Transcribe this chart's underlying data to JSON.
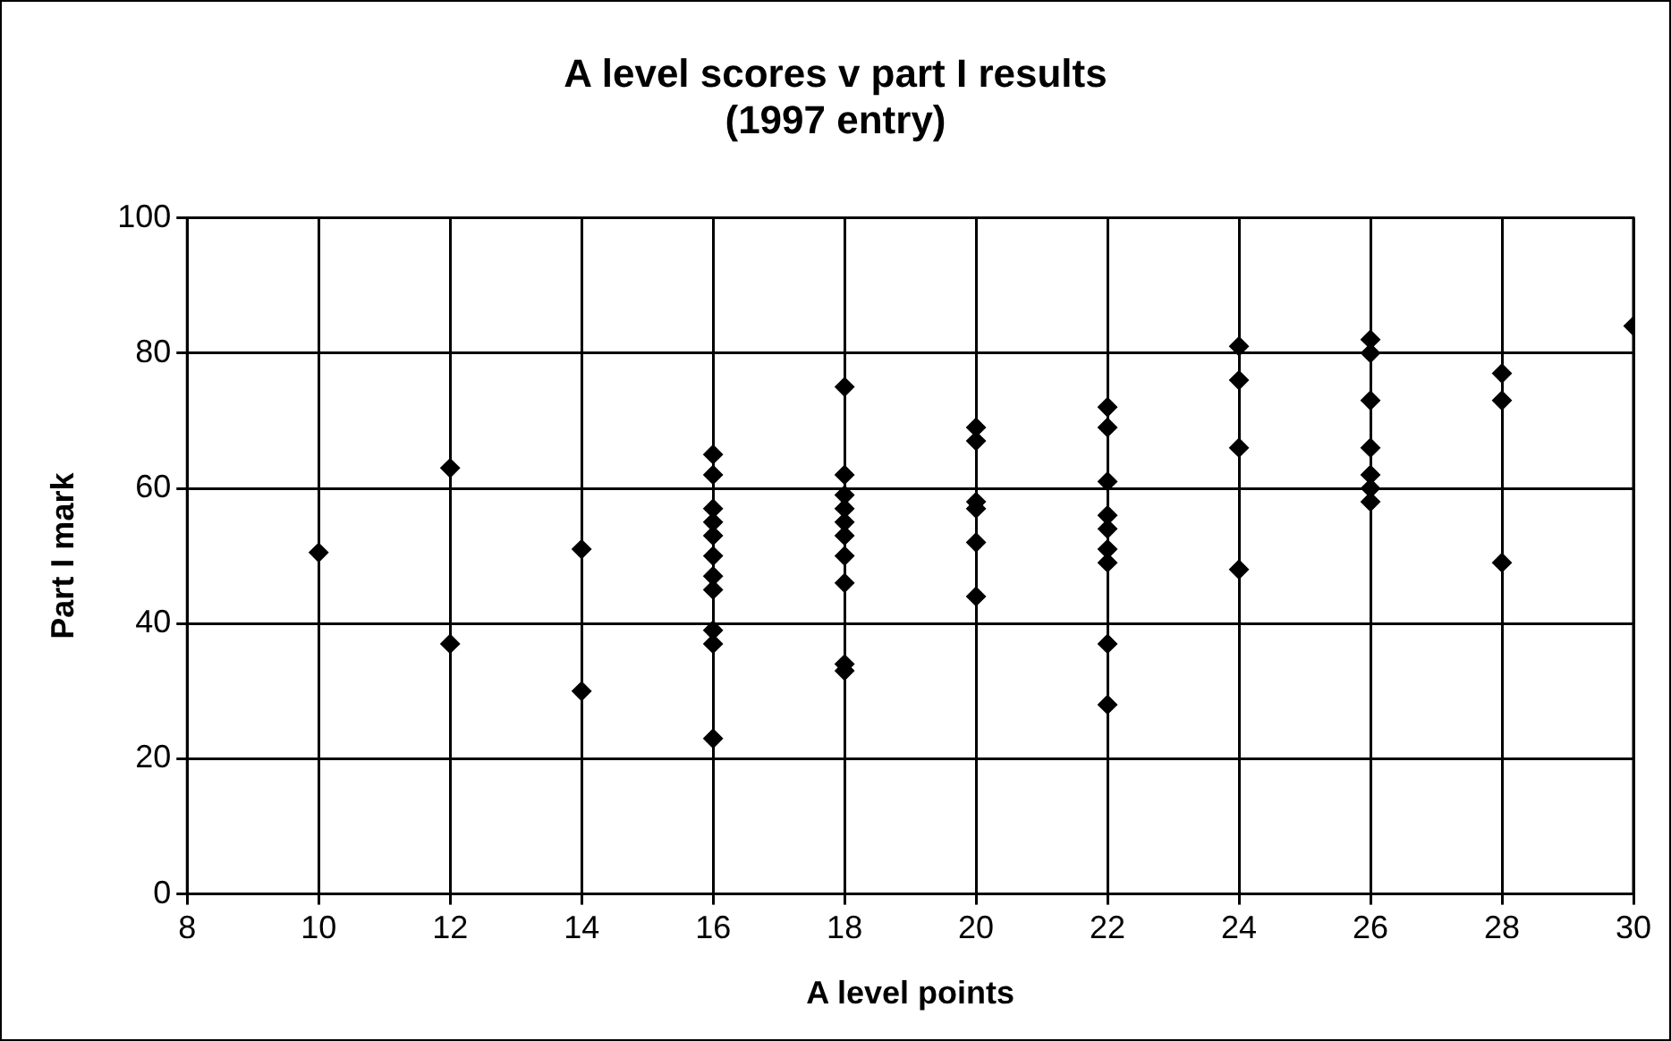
{
  "chart_data": {
    "type": "scatter",
    "title": "A level scores v part I results\n(1997 entry)",
    "xlabel": "A level points",
    "ylabel": "Part I mark",
    "x": [
      10,
      12,
      12,
      14,
      14,
      16,
      16,
      16,
      16,
      16,
      16,
      16,
      16,
      16,
      16,
      16,
      18,
      18,
      18,
      18,
      18,
      18,
      18,
      18,
      18,
      18,
      20,
      20,
      20,
      20,
      20,
      20,
      22,
      22,
      22,
      22,
      22,
      22,
      22,
      22,
      22,
      24,
      24,
      24,
      24,
      26,
      26,
      26,
      26,
      26,
      26,
      26,
      28,
      28,
      28,
      30
    ],
    "values": [
      50.5,
      63,
      37,
      51,
      30,
      65,
      62,
      57,
      55,
      53,
      50,
      47,
      45,
      39,
      37,
      23,
      75,
      62,
      59,
      57,
      55,
      53,
      50,
      46,
      34,
      33,
      69,
      67,
      58,
      57,
      52,
      44,
      72,
      69,
      61,
      56,
      54,
      51,
      49,
      37,
      28,
      81,
      76,
      66,
      48,
      82,
      80,
      73,
      66,
      62,
      60,
      58,
      77,
      73,
      49,
      84
    ],
    "color": "#000000",
    "marker": "diamond",
    "xlim": [
      8,
      30
    ],
    "xticks": [
      8,
      10,
      12,
      14,
      16,
      18,
      20,
      22,
      24,
      26,
      28,
      30
    ],
    "ylim": [
      0,
      100
    ],
    "yticks": [
      0,
      20,
      40,
      60,
      80,
      100
    ],
    "grid": true
  }
}
